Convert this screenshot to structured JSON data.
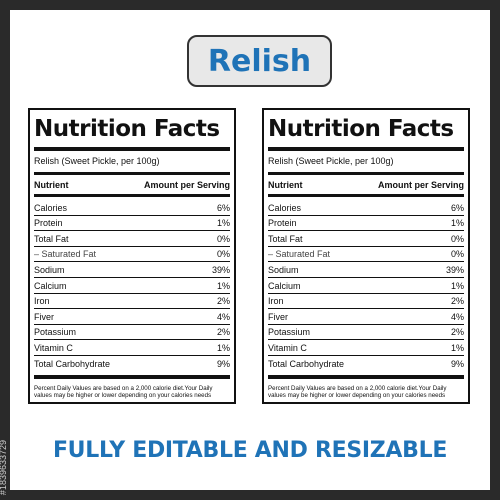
{
  "title": "Relish",
  "labels": [
    {
      "heading": "Nutrition Facts",
      "serving": "Relish (Sweet Pickle, per 100g)",
      "col_nutrient": "Nutrient",
      "col_amount": "Amount per Serving",
      "rows": [
        {
          "name": "Calories",
          "value": "6%"
        },
        {
          "name": "Protein",
          "value": "1%"
        },
        {
          "name": "Total Fat",
          "value": "0%"
        },
        {
          "name": "– Saturated Fat",
          "value": "0%"
        },
        {
          "name": "Sodium",
          "value": "39%"
        },
        {
          "name": "Calcium",
          "value": "1%"
        },
        {
          "name": "Iron",
          "value": "2%"
        },
        {
          "name": "Fiver",
          "value": "4%"
        },
        {
          "name": "Potassium",
          "value": "2%"
        },
        {
          "name": "Vitamin C",
          "value": "1%"
        },
        {
          "name": "Total Carbohydrate",
          "value": "9%"
        }
      ],
      "footnote": "Percent Daily Values are based on a 2,000 calorie diet.Your Daily values may be higher or lower depending on your calories needs"
    },
    {
      "heading": "Nutrition Facts",
      "serving": "Relish (Sweet Pickle, per 100g)",
      "col_nutrient": "Nutrient",
      "col_amount": "Amount per Serving",
      "rows": [
        {
          "name": "Calories",
          "value": "6%"
        },
        {
          "name": "Protein",
          "value": "1%"
        },
        {
          "name": "Total Fat",
          "value": "0%"
        },
        {
          "name": "– Saturated Fat",
          "value": "0%"
        },
        {
          "name": "Sodium",
          "value": "39%"
        },
        {
          "name": "Calcium",
          "value": "1%"
        },
        {
          "name": "Iron",
          "value": "2%"
        },
        {
          "name": "Fiver",
          "value": "4%"
        },
        {
          "name": "Potassium",
          "value": "2%"
        },
        {
          "name": "Vitamin C",
          "value": "1%"
        },
        {
          "name": "Total Carbohydrate",
          "value": "9%"
        }
      ],
      "footnote": "Percent Daily Values are based on a 2,000 calorie diet.Your Daily values may be higher or lower depending on your calories needs"
    }
  ],
  "tagline": "FULLY EDITABLE AND RESIZABLE",
  "watermark_id": "#1839633729",
  "colors": {
    "accent": "#1f73b7",
    "frame": "#2a2a2a"
  }
}
